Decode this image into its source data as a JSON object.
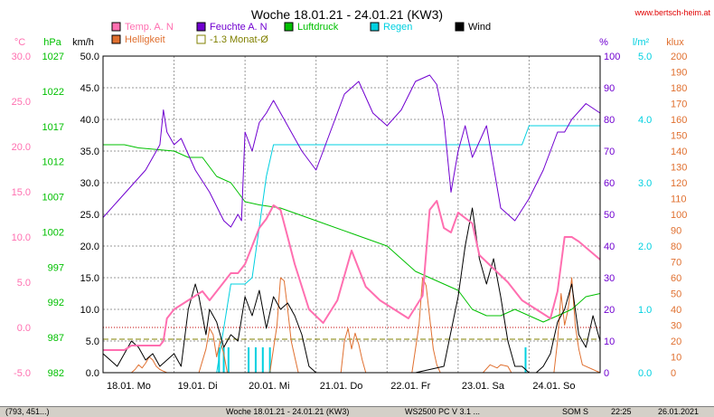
{
  "chart_data": {
    "type": "line",
    "title": "Woche 18.01.21 - 24.01.21 (KW3)",
    "watermark": "www.bertsch-heim.at",
    "x_labels": [
      "18.01. Mo",
      "19.01. Di",
      "20.01. Mi",
      "21.01. Do",
      "22.01. Fr",
      "23.01. Sa",
      "24.01. So"
    ],
    "x_range": [
      0,
      7
    ],
    "grid": true,
    "legend_position": "top",
    "axes": [
      {
        "id": "temp",
        "unit": "°C",
        "color": "#ff6fb0",
        "range": [
          -5,
          30
        ],
        "ticks": [
          "-5.0",
          "0.0",
          "5.0",
          "10.0",
          "15.0",
          "20.0",
          "25.0",
          "30.0"
        ]
      },
      {
        "id": "pres",
        "unit": "hPa",
        "color": "#00c000",
        "range": [
          982,
          1032
        ],
        "ticks": [
          "982",
          "987",
          "992",
          "997",
          "1002",
          "1007",
          "1012",
          "1017",
          "1022",
          "1027"
        ]
      },
      {
        "id": "wind",
        "unit": "km/h",
        "color": "#000000",
        "range": [
          0,
          50
        ],
        "ticks": [
          "0.0",
          "5.0",
          "10.0",
          "15.0",
          "20.0",
          "25.0",
          "30.0",
          "35.0",
          "40.0",
          "45.0",
          "50.0"
        ]
      },
      {
        "id": "hum",
        "unit": "%",
        "color": "#7000d0",
        "range": [
          0,
          100
        ],
        "ticks": [
          "0",
          "10",
          "20",
          "30",
          "40",
          "50",
          "60",
          "70",
          "80",
          "90",
          "100"
        ]
      },
      {
        "id": "rain",
        "unit": "l/m²",
        "color": "#00d0e0",
        "range": [
          0,
          5
        ],
        "ticks": [
          "0.0",
          "1.0",
          "2.0",
          "3.0",
          "4.0",
          "5.0"
        ]
      },
      {
        "id": "lux",
        "unit": "klux",
        "color": "#e07030",
        "range": [
          0,
          200
        ],
        "ticks": [
          "0",
          "10",
          "20",
          "30",
          "40",
          "50",
          "60",
          "70",
          "80",
          "90",
          "100",
          "110",
          "120",
          "130",
          "140",
          "150",
          "160",
          "170",
          "180",
          "190",
          "200"
        ]
      }
    ],
    "legend": [
      {
        "label": "Temp. A. N",
        "color": "#ff6fb0"
      },
      {
        "label": "Feuchte A. N",
        "color": "#7000d0"
      },
      {
        "label": "Luftdruck",
        "color": "#00c000"
      },
      {
        "label": "Regen",
        "color": "#00d0e0"
      },
      {
        "label": "Wind",
        "color": "#000000"
      },
      {
        "label": "Helligkeit",
        "color": "#e07030"
      },
      {
        "label": "-1.3 Monat-Ø",
        "color": "#808000"
      }
    ],
    "reference_lines": [
      {
        "axis": "temp",
        "value": 0,
        "color": "#c00000",
        "style": "dotted"
      },
      {
        "axis": "temp",
        "value": -1.3,
        "color": "#808000",
        "style": "dashed"
      }
    ],
    "series": [
      {
        "name": "Temp. A. N",
        "axis": "temp",
        "color": "#ff6fb0",
        "x": [
          0,
          0.3,
          0.4,
          0.6,
          0.8,
          0.85,
          0.9,
          1.0,
          1.2,
          1.4,
          1.5,
          1.7,
          1.8,
          1.9,
          2.0,
          2.1,
          2.2,
          2.3,
          2.4,
          2.5,
          2.6,
          2.7,
          2.9,
          3.1,
          3.3,
          3.5,
          3.7,
          3.9,
          4.1,
          4.3,
          4.5,
          4.6,
          4.7,
          4.8,
          4.9,
          5.0,
          5.2,
          5.3,
          5.5,
          5.7,
          5.9,
          6.1,
          6.3,
          6.4,
          6.5,
          6.6,
          6.7,
          6.85,
          7.0
        ],
        "y": [
          -2.5,
          -2.5,
          -2,
          -2,
          -2,
          -1.5,
          1,
          2,
          3,
          4,
          3,
          5,
          6,
          6,
          7,
          9,
          11,
          12,
          13.5,
          13,
          10,
          7,
          2,
          0.5,
          3,
          8.5,
          4.5,
          3,
          2,
          1,
          3.5,
          13,
          14,
          11,
          10.5,
          12.7,
          11.5,
          8,
          6.5,
          5,
          3,
          2,
          1,
          4,
          10,
          10,
          9.5,
          8.5,
          7.5
        ]
      },
      {
        "name": "Feuchte A. N",
        "axis": "hum",
        "color": "#7000d0",
        "x": [
          0,
          0.2,
          0.4,
          0.6,
          0.8,
          0.85,
          0.9,
          1.0,
          1.1,
          1.3,
          1.5,
          1.7,
          1.8,
          1.9,
          1.95,
          2.0,
          2.1,
          2.2,
          2.3,
          2.4,
          2.6,
          2.8,
          3.0,
          3.2,
          3.4,
          3.6,
          3.8,
          4.0,
          4.2,
          4.4,
          4.6,
          4.7,
          4.8,
          4.9,
          5.0,
          5.1,
          5.2,
          5.4,
          5.6,
          5.8,
          6.0,
          6.2,
          6.4,
          6.5,
          6.6,
          6.8,
          7.0
        ],
        "y": [
          49,
          54,
          59,
          64,
          72,
          83,
          76,
          72,
          74,
          64,
          57,
          48,
          46,
          50,
          48,
          76,
          70,
          79,
          82,
          86,
          78,
          70,
          64,
          76,
          88,
          92,
          82,
          78,
          83,
          92,
          94,
          91,
          80,
          57,
          70,
          78,
          68,
          78,
          52,
          48,
          55,
          64,
          76,
          76,
          80,
          85,
          82
        ]
      },
      {
        "name": "Luftdruck",
        "axis": "pres",
        "color": "#00c000",
        "x": [
          0,
          0.3,
          0.5,
          1.0,
          1.2,
          1.4,
          1.6,
          1.8,
          2.0,
          2.2,
          2.5,
          3.0,
          3.5,
          4.0,
          4.2,
          4.4,
          4.6,
          4.8,
          5.0,
          5.2,
          5.4,
          5.6,
          5.8,
          6.0,
          6.2,
          6.4,
          6.6,
          6.8,
          7.0
        ],
        "y": [
          1018,
          1018,
          1017.5,
          1017,
          1016,
          1016,
          1013,
          1012,
          1009,
          1008.5,
          1008,
          1006,
          1004,
          1002,
          1000,
          998,
          997,
          996,
          995,
          992,
          991,
          991,
          992,
          991,
          990,
          991,
          992,
          994,
          994.5
        ]
      },
      {
        "name": "Regen",
        "axis": "rain",
        "color": "#00d0e0",
        "x": [
          0,
          1.4,
          1.6,
          1.8,
          2.0,
          2.1,
          2.2,
          2.3,
          2.4,
          2.5,
          2.6,
          2.8,
          3.0,
          4.0,
          5.0,
          5.5,
          5.9,
          6.0,
          6.1,
          6.5,
          7.0
        ],
        "y": [
          0,
          0,
          0,
          1.4,
          1.4,
          1.5,
          2.3,
          3.1,
          3.6,
          3.6,
          3.6,
          3.6,
          3.6,
          3.6,
          3.6,
          3.6,
          3.6,
          3.9,
          3.9,
          3.9,
          3.9
        ]
      },
      {
        "name": "Wind",
        "axis": "wind",
        "color": "#000000",
        "x": [
          0,
          0.1,
          0.2,
          0.3,
          0.4,
          0.5,
          0.6,
          0.7,
          0.8,
          0.9,
          1.0,
          1.1,
          1.2,
          1.3,
          1.35,
          1.45,
          1.5,
          1.6,
          1.7,
          1.8,
          1.9,
          2.0,
          2.1,
          2.2,
          2.3,
          2.4,
          2.5,
          2.6,
          2.7,
          2.8,
          2.9,
          3.0,
          3.2,
          3.4,
          3.6,
          3.8,
          4.0,
          4.4,
          4.8,
          5.0,
          5.1,
          5.2,
          5.3,
          5.4,
          5.5,
          5.6,
          5.7,
          5.8,
          5.9,
          6.0,
          6.1,
          6.2,
          6.3,
          6.4,
          6.5,
          6.6,
          6.7,
          6.8,
          6.9,
          7.0
        ],
        "y": [
          3,
          2,
          1,
          3,
          5,
          4,
          2,
          3,
          1,
          2,
          3,
          1,
          10,
          14,
          12,
          6,
          10,
          8,
          4,
          6,
          5,
          12,
          9,
          13,
          7,
          12,
          10,
          11,
          9,
          6,
          1,
          0,
          0,
          0,
          0,
          0,
          0,
          0,
          1,
          12,
          20,
          26,
          18,
          14,
          18,
          12,
          5,
          1,
          1,
          0,
          0,
          1,
          3,
          8,
          10,
          14,
          6,
          4,
          9,
          5
        ]
      },
      {
        "name": "Helligkeit",
        "axis": "lux",
        "color": "#e07030",
        "x": [
          0,
          0.4,
          0.45,
          0.5,
          0.55,
          0.6,
          0.65,
          0.7,
          0.75,
          0.8,
          0.85,
          0.9,
          1.35,
          1.45,
          1.5,
          1.55,
          1.6,
          1.65,
          1.7,
          1.75,
          2.35,
          2.45,
          2.5,
          2.55,
          2.6,
          2.65,
          2.7,
          2.75,
          3.35,
          3.4,
          3.45,
          3.5,
          3.55,
          3.6,
          3.65,
          3.7,
          4.35,
          4.45,
          4.5,
          4.55,
          4.6,
          4.65,
          4.7,
          4.75,
          5.35,
          5.45,
          5.55,
          5.6,
          5.7,
          5.75,
          6.35,
          6.4,
          6.45,
          6.5,
          6.55,
          6.6,
          6.65,
          6.7,
          6.75,
          7.0
        ],
        "y": [
          0,
          0,
          2,
          5,
          3,
          6,
          10,
          8,
          4,
          2,
          1,
          0,
          0,
          15,
          28,
          24,
          10,
          20,
          12,
          0,
          0,
          30,
          60,
          58,
          40,
          20,
          10,
          0,
          0,
          20,
          28,
          15,
          25,
          18,
          8,
          0,
          0,
          30,
          60,
          55,
          35,
          15,
          5,
          0,
          0,
          5,
          3,
          5,
          4,
          0,
          0,
          20,
          50,
          30,
          40,
          60,
          30,
          15,
          5,
          0
        ]
      }
    ]
  },
  "statusbar": {
    "coords": "(793, 451...)",
    "info": "Woche 18.01.21 - 24.01.21 (KW3)",
    "device": "WS2500 PC V 3.1 ...",
    "mode": "SOM S",
    "time": "22:25",
    "date": "26.01.2021"
  }
}
